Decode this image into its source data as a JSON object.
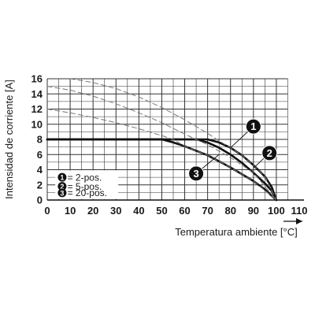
{
  "chart_data": {
    "type": "line",
    "xlabel": "Temperatura ambiente [°C]",
    "ylabel": "Intensidad de corriente [A]",
    "xlim": [
      0,
      110
    ],
    "ylim": [
      0,
      16
    ],
    "x_ticks": [
      "0",
      "10",
      "20",
      "30",
      "40",
      "50",
      "60",
      "70",
      "80",
      "90",
      "100",
      "110"
    ],
    "y_ticks": [
      "0",
      "2",
      "4",
      "6",
      "8",
      "10",
      "12",
      "14",
      "16"
    ],
    "grid": true,
    "legend": {
      "position": "lower-left",
      "entries": [
        {
          "marker": "1",
          "label": "= 2-pos."
        },
        {
          "marker": "2",
          "label": "= 5-pos."
        },
        {
          "marker": "3",
          "label": "= 20-pos."
        }
      ]
    },
    "series": [
      {
        "marker": "1",
        "style": "solid",
        "color": "#111111",
        "points": [
          [
            0,
            8
          ],
          [
            70,
            8
          ],
          [
            75,
            7.6
          ],
          [
            80,
            6.9
          ],
          [
            85,
            5.9
          ],
          [
            90,
            4.6
          ],
          [
            95,
            3.1
          ],
          [
            98,
            1.7
          ],
          [
            100,
            0
          ]
        ]
      },
      {
        "marker": "2",
        "style": "solid",
        "color": "#111111",
        "points": [
          [
            0,
            8
          ],
          [
            65,
            8
          ],
          [
            70,
            7.6
          ],
          [
            75,
            6.9
          ],
          [
            80,
            6.0
          ],
          [
            85,
            4.9
          ],
          [
            90,
            3.6
          ],
          [
            95,
            2.2
          ],
          [
            98,
            1.2
          ],
          [
            100,
            0
          ]
        ]
      },
      {
        "marker": "3",
        "style": "solid",
        "color": "#111111",
        "points": [
          [
            0,
            8
          ],
          [
            50,
            8
          ],
          [
            55,
            7.6
          ],
          [
            60,
            7.1
          ],
          [
            65,
            6.5
          ],
          [
            70,
            5.9
          ],
          [
            75,
            5.1
          ],
          [
            80,
            4.3
          ],
          [
            85,
            3.4
          ],
          [
            90,
            2.5
          ],
          [
            95,
            1.4
          ],
          [
            100,
            0
          ]
        ]
      },
      {
        "marker": "1",
        "style": "dashed",
        "color": "#777777",
        "points": [
          [
            10,
            16
          ],
          [
            20,
            15.5
          ],
          [
            30,
            14.7
          ],
          [
            40,
            13.6
          ],
          [
            50,
            12.2
          ],
          [
            60,
            10.6
          ],
          [
            70,
            8.8
          ],
          [
            75,
            7.8
          ],
          [
            80,
            6.9
          ],
          [
            85,
            5.9
          ],
          [
            90,
            4.6
          ],
          [
            95,
            3.1
          ],
          [
            100,
            0
          ]
        ]
      },
      {
        "marker": "2",
        "style": "dashed",
        "color": "#777777",
        "points": [
          [
            0,
            15
          ],
          [
            10,
            14.5
          ],
          [
            20,
            13.7
          ],
          [
            30,
            12.7
          ],
          [
            40,
            11.5
          ],
          [
            50,
            10.2
          ],
          [
            60,
            8.7
          ],
          [
            70,
            7.3
          ],
          [
            80,
            5.6
          ],
          [
            90,
            3.6
          ],
          [
            100,
            0
          ]
        ]
      },
      {
        "marker": "3",
        "style": "dashed",
        "color": "#777777",
        "points": [
          [
            0,
            12
          ],
          [
            10,
            11.5
          ],
          [
            20,
            10.9
          ],
          [
            30,
            10.2
          ],
          [
            40,
            9.4
          ],
          [
            50,
            8.5
          ],
          [
            55,
            8
          ],
          [
            60,
            7.1
          ],
          [
            70,
            5.9
          ],
          [
            80,
            4.3
          ],
          [
            90,
            2.5
          ],
          [
            100,
            0
          ]
        ]
      }
    ],
    "callouts": [
      {
        "marker": "1",
        "label_pos": [
          90,
          9.7
        ],
        "leader_to": [
          80,
          6.9
        ]
      },
      {
        "marker": "2",
        "label_pos": [
          97,
          6.2
        ],
        "leader_to": [
          90,
          4.2
        ]
      },
      {
        "marker": "3",
        "label_pos": [
          65,
          3.5
        ],
        "leader_to": [
          75,
          6.0
        ]
      }
    ]
  }
}
